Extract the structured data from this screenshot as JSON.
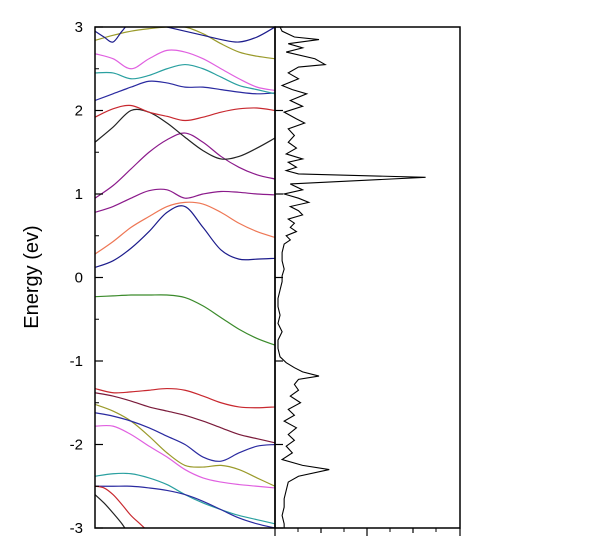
{
  "chart_data": [
    {
      "type": "line",
      "panel": "band-structure",
      "title": "",
      "xlabel": "",
      "ylabel": "Energy (ev)",
      "ylim": [
        -3,
        3
      ],
      "xlim": [
        0,
        1
      ],
      "y_ticks": [
        -3,
        -2,
        -1,
        0,
        1,
        2,
        3
      ],
      "y_tick_labels": [
        "-3",
        "-2",
        "-1",
        "0",
        "1",
        "2",
        "3"
      ],
      "grid": false,
      "legend": "none",
      "series": [
        {
          "color": "#1c1c8c",
          "x": [
            0,
            0.1,
            0.2,
            0.3,
            0.4,
            0.5,
            0.6,
            0.7,
            0.8,
            0.9,
            1
          ],
          "y": [
            0.12,
            0.2,
            0.35,
            0.55,
            0.78,
            0.85,
            0.6,
            0.33,
            0.22,
            0.22,
            0.23
          ]
        },
        {
          "color": "#ee7755",
          "x": [
            0,
            0.1,
            0.2,
            0.3,
            0.4,
            0.5,
            0.6,
            0.7,
            0.8,
            0.9,
            1
          ],
          "y": [
            0.28,
            0.43,
            0.6,
            0.73,
            0.85,
            0.9,
            0.88,
            0.78,
            0.65,
            0.55,
            0.48
          ]
        },
        {
          "color": "#8b1a8b",
          "x": [
            0,
            0.1,
            0.2,
            0.3,
            0.4,
            0.5,
            0.6,
            0.7,
            0.8,
            0.9,
            1
          ],
          "y": [
            0.78,
            0.85,
            0.95,
            1.04,
            1.05,
            0.95,
            1.0,
            1.03,
            1.02,
            1.0,
            0.99
          ]
        },
        {
          "color": "#8b1a8b",
          "x": [
            0,
            0.1,
            0.2,
            0.3,
            0.4,
            0.5,
            0.6,
            0.7,
            0.8,
            0.9,
            1
          ],
          "y": [
            0.95,
            1.1,
            1.3,
            1.5,
            1.65,
            1.73,
            1.62,
            1.45,
            1.32,
            1.23,
            1.18
          ]
        },
        {
          "color": "#222222",
          "x": [
            0,
            0.1,
            0.2,
            0.3,
            0.4,
            0.5,
            0.6,
            0.7,
            0.8,
            0.9,
            1
          ],
          "y": [
            1.62,
            1.8,
            2.0,
            1.98,
            1.85,
            1.68,
            1.52,
            1.42,
            1.45,
            1.55,
            1.67
          ]
        },
        {
          "color": "#c8282f",
          "x": [
            0,
            0.1,
            0.2,
            0.3,
            0.4,
            0.5,
            0.6,
            0.7,
            0.8,
            0.9,
            1
          ],
          "y": [
            1.92,
            2.02,
            2.06,
            1.98,
            1.93,
            1.88,
            1.92,
            1.98,
            2.02,
            2.03,
            2.0
          ]
        },
        {
          "color": "#2a2aa0",
          "x": [
            0,
            0.1,
            0.2,
            0.3,
            0.4,
            0.5,
            0.6,
            0.7,
            0.8,
            0.9,
            1
          ],
          "y": [
            2.12,
            2.2,
            2.28,
            2.35,
            2.33,
            2.28,
            2.28,
            2.25,
            2.22,
            2.2,
            2.21
          ]
        },
        {
          "color": "#2aa0a0",
          "x": [
            0,
            0.1,
            0.2,
            0.3,
            0.4,
            0.5,
            0.6,
            0.7,
            0.8,
            0.9,
            1
          ],
          "y": [
            2.45,
            2.45,
            2.38,
            2.42,
            2.5,
            2.55,
            2.5,
            2.4,
            2.3,
            2.25,
            2.2
          ]
        },
        {
          "color": "#e060e0",
          "x": [
            0,
            0.1,
            0.2,
            0.3,
            0.4,
            0.5,
            0.6,
            0.7,
            0.8,
            0.9,
            1
          ],
          "y": [
            2.68,
            2.62,
            2.5,
            2.62,
            2.72,
            2.7,
            2.62,
            2.5,
            2.38,
            2.28,
            2.24
          ]
        },
        {
          "color": "#9a9a2a",
          "x": [
            0,
            0.1,
            0.2,
            0.3,
            0.4,
            0.5,
            0.6,
            0.7,
            0.8,
            0.9,
            1
          ],
          "y": [
            2.84,
            2.9,
            2.95,
            2.98,
            3.0,
            3.0,
            2.92,
            2.8,
            2.7,
            2.65,
            2.62
          ]
        },
        {
          "color": "#1c1c8c",
          "x": [
            0,
            0.05,
            0.1,
            0.15,
            0.2,
            0.3,
            0.4,
            0.5,
            0.6,
            0.7,
            0.8,
            0.9,
            1
          ],
          "y": [
            2.95,
            2.88,
            2.82,
            2.95,
            3.05,
            3.05,
            3.0,
            2.95,
            2.9,
            2.85,
            2.82,
            2.88,
            3.0
          ]
        },
        {
          "color": "#3a8a2a",
          "x": [
            0,
            0.1,
            0.2,
            0.3,
            0.4,
            0.5,
            0.6,
            0.7,
            0.8,
            0.9,
            1
          ],
          "y": [
            -0.23,
            -0.22,
            -0.21,
            -0.21,
            -0.21,
            -0.24,
            -0.34,
            -0.48,
            -0.62,
            -0.73,
            -0.81
          ]
        },
        {
          "color": "#c8282f",
          "x": [
            0,
            0.1,
            0.2,
            0.3,
            0.4,
            0.5,
            0.6,
            0.7,
            0.8,
            0.9,
            1
          ],
          "y": [
            -1.33,
            -1.38,
            -1.37,
            -1.35,
            -1.33,
            -1.35,
            -1.42,
            -1.5,
            -1.55,
            -1.56,
            -1.55
          ]
        },
        {
          "color": "#7a1a3a",
          "x": [
            0,
            0.1,
            0.2,
            0.3,
            0.4,
            0.5,
            0.6,
            0.7,
            0.8,
            0.9,
            1
          ],
          "y": [
            -1.38,
            -1.42,
            -1.48,
            -1.55,
            -1.6,
            -1.65,
            -1.72,
            -1.8,
            -1.88,
            -1.93,
            -1.98
          ]
        },
        {
          "color": "#9a9a2a",
          "x": [
            0,
            0.1,
            0.2,
            0.3,
            0.4,
            0.5,
            0.6,
            0.7,
            0.8,
            0.9,
            1
          ],
          "y": [
            -1.52,
            -1.6,
            -1.72,
            -1.9,
            -2.1,
            -2.25,
            -2.27,
            -2.25,
            -2.3,
            -2.4,
            -2.5
          ]
        },
        {
          "color": "#2a2aa0",
          "x": [
            0,
            0.1,
            0.2,
            0.3,
            0.4,
            0.5,
            0.6,
            0.7,
            0.8,
            0.9,
            1
          ],
          "y": [
            -1.62,
            -1.66,
            -1.72,
            -1.8,
            -1.9,
            -2.0,
            -2.15,
            -2.2,
            -2.1,
            -2.02,
            -2.0
          ]
        },
        {
          "color": "#e060e0",
          "x": [
            0,
            0.1,
            0.2,
            0.3,
            0.4,
            0.5,
            0.6,
            0.7,
            0.8,
            0.9,
            1
          ],
          "y": [
            -1.78,
            -1.78,
            -1.88,
            -2.02,
            -2.15,
            -2.3,
            -2.4,
            -2.45,
            -2.48,
            -2.5,
            -2.52
          ]
        },
        {
          "color": "#2aa0a0",
          "x": [
            0,
            0.1,
            0.2,
            0.3,
            0.4,
            0.5,
            0.6,
            0.7,
            0.8,
            0.9,
            1
          ],
          "y": [
            -2.38,
            -2.35,
            -2.35,
            -2.4,
            -2.48,
            -2.6,
            -2.7,
            -2.78,
            -2.85,
            -2.9,
            -2.95
          ]
        },
        {
          "color": "#2a2aa0",
          "x": [
            0,
            0.1,
            0.2,
            0.3,
            0.4,
            0.5,
            0.6,
            0.7,
            0.8,
            0.9,
            1
          ],
          "y": [
            -2.5,
            -2.5,
            -2.5,
            -2.52,
            -2.55,
            -2.6,
            -2.68,
            -2.78,
            -2.88,
            -2.95,
            -3.0
          ]
        },
        {
          "color": "#c8282f",
          "x": [
            0,
            0.05,
            0.1,
            0.15,
            0.2,
            0.25,
            0.3
          ],
          "y": [
            -2.5,
            -2.52,
            -2.6,
            -2.72,
            -2.85,
            -2.95,
            -3.05
          ]
        },
        {
          "color": "#222222",
          "x": [
            0,
            0.05,
            0.1,
            0.15,
            0.18
          ],
          "y": [
            -2.6,
            -2.7,
            -2.82,
            -2.95,
            -3.05
          ]
        }
      ]
    },
    {
      "type": "line",
      "panel": "density-of-states",
      "title": "",
      "xlabel": "",
      "ylabel": "",
      "ylim": [
        -3,
        3
      ],
      "grid": false,
      "legend": "none",
      "series": [
        {
          "color": "#000000",
          "y": [
            3.0,
            2.95,
            2.88,
            2.85,
            2.8,
            2.75,
            2.7,
            2.62,
            2.55,
            2.52,
            2.45,
            2.38,
            2.3,
            2.25,
            2.2,
            2.12,
            2.05,
            1.98,
            1.9,
            1.85,
            1.78,
            1.7,
            1.62,
            1.55,
            1.48,
            1.42,
            1.38,
            1.32,
            1.28,
            1.24,
            1.2,
            1.12,
            1.05,
            1.0,
            0.95,
            0.9,
            0.85,
            0.8,
            0.75,
            0.7,
            0.65,
            0.6,
            0.55,
            0.5,
            0.45,
            0.4,
            0.3,
            0.2,
            0.1,
            0.02,
            -0.05,
            -0.15,
            -0.25,
            -0.35,
            -0.45,
            -0.55,
            -0.65,
            -0.75,
            -0.85,
            -0.95,
            -1.02,
            -1.08,
            -1.13,
            -1.18,
            -1.22,
            -1.28,
            -1.35,
            -1.42,
            -1.5,
            -1.58,
            -1.65,
            -1.72,
            -1.8,
            -1.88,
            -1.95,
            -2.02,
            -2.1,
            -2.18,
            -2.25,
            -2.3,
            -2.38,
            -2.45,
            -2.55,
            -2.65,
            -2.75,
            -2.85,
            -2.95,
            -3.0
          ],
          "x": [
            0.01,
            0.02,
            0.08,
            0.2,
            0.05,
            0.12,
            0.04,
            0.18,
            0.23,
            0.1,
            0.05,
            0.1,
            0.02,
            0.07,
            0.14,
            0.06,
            0.12,
            0.03,
            0.09,
            0.13,
            0.05,
            0.08,
            0.05,
            0.09,
            0.04,
            0.12,
            0.05,
            0.09,
            0.04,
            0.1,
            0.72,
            0.06,
            0.12,
            0.03,
            0.1,
            0.15,
            0.06,
            0.1,
            0.12,
            0.05,
            0.08,
            0.06,
            0.09,
            0.04,
            0.06,
            0.03,
            0.02,
            0.02,
            0.03,
            0.02,
            0.02,
            0.01,
            0.0,
            0.0,
            0.01,
            0.0,
            0.02,
            0.0,
            0.0,
            0.01,
            0.04,
            0.08,
            0.12,
            0.2,
            0.1,
            0.08,
            0.1,
            0.06,
            0.11,
            0.05,
            0.08,
            0.03,
            0.09,
            0.05,
            0.08,
            0.04,
            0.07,
            0.02,
            0.12,
            0.25,
            0.1,
            0.05,
            0.04,
            0.03,
            0.03,
            0.02,
            0.03,
            0.03
          ]
        }
      ]
    }
  ]
}
